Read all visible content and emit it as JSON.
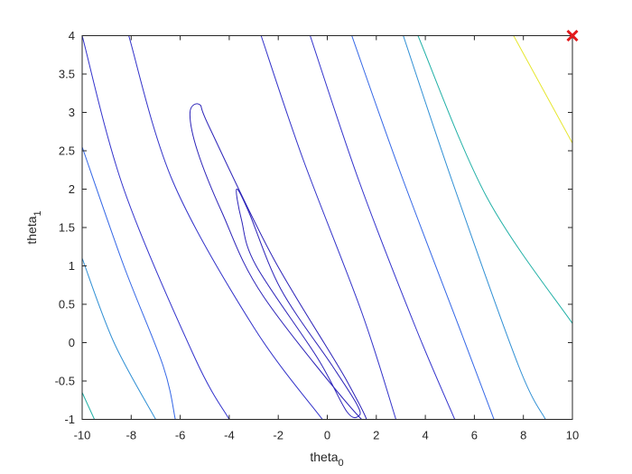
{
  "chart_data": {
    "type": "contour",
    "xlabel": {
      "base": "theta",
      "subscript": "0"
    },
    "ylabel": {
      "base": "theta",
      "subscript": "1"
    },
    "xlim": [
      -10,
      10
    ],
    "ylim": [
      -1,
      4
    ],
    "xticks": [
      "-10",
      "-8",
      "-6",
      "-4",
      "-2",
      "0",
      "2",
      "4",
      "6",
      "8",
      "10"
    ],
    "xtick_values": [
      -10,
      -8,
      -6,
      -4,
      -2,
      0,
      2,
      4,
      6,
      8,
      10
    ],
    "yticks": [
      "-1",
      "-0.5",
      "0",
      "0.5",
      "1",
      "1.5",
      "2",
      "2.5",
      "3",
      "3.5",
      "4"
    ],
    "ytick_values": [
      -1,
      -0.5,
      0,
      0.5,
      1,
      1.5,
      2,
      2.5,
      3,
      3.5,
      4
    ],
    "grid": false,
    "contour_levels": [
      {
        "color": "#2b22b8",
        "points": [
          [
            -2.9,
            1.0
          ],
          [
            -3.5,
            1.6
          ],
          [
            -3.7,
            2.0
          ],
          [
            -3.2,
            1.7
          ],
          [
            -1.9,
            0.7
          ],
          [
            0.2,
            -0.3
          ],
          [
            1.2,
            -0.8
          ],
          [
            1.3,
            -0.95
          ],
          [
            0.8,
            -0.9
          ],
          [
            -0.4,
            -0.2
          ]
        ],
        "closed": true
      },
      {
        "color": "#2b22b8",
        "points": [
          [
            -5.6,
            3.0
          ],
          [
            -5.2,
            3.1
          ],
          [
            -4.8,
            2.8
          ],
          [
            -2.2,
            1.1
          ],
          [
            0.8,
            -0.5
          ],
          [
            1.4,
            -1.0
          ],
          [
            -2.6,
            0.6
          ],
          [
            -4.3,
            1.7
          ],
          [
            -5.3,
            2.5
          ]
        ],
        "closed": true
      },
      {
        "color": "#3131c9",
        "points": [
          [
            -8.1,
            4.0
          ],
          [
            -6.3,
            2.1
          ],
          [
            -3.0,
            0.2
          ],
          [
            -0.2,
            -1.0
          ]
        ],
        "closed": false
      },
      {
        "color": "#3131c9",
        "points": [
          [
            -2.7,
            4.0
          ],
          [
            -1.0,
            2.4
          ],
          [
            1.4,
            0.4
          ],
          [
            2.8,
            -1.0
          ]
        ],
        "closed": false
      },
      {
        "color": "#3232cc",
        "points": [
          [
            -10.0,
            4.0
          ],
          [
            -8.3,
            2.0
          ],
          [
            -5.4,
            -0.2
          ],
          [
            -4.0,
            -1.0
          ]
        ],
        "closed": false
      },
      {
        "color": "#3232cc",
        "points": [
          [
            -0.7,
            4.0
          ],
          [
            1.3,
            2.1
          ],
          [
            3.6,
            0.2
          ],
          [
            5.2,
            -1.0
          ]
        ],
        "closed": false
      },
      {
        "color": "#3366e6",
        "points": [
          [
            -10.0,
            2.55
          ],
          [
            -8.3,
            1.0
          ],
          [
            -6.7,
            -0.3
          ],
          [
            -6.2,
            -1.0
          ]
        ],
        "closed": false
      },
      {
        "color": "#3366e6",
        "points": [
          [
            1.0,
            4.0
          ],
          [
            3.0,
            2.2
          ],
          [
            5.5,
            0.1
          ],
          [
            6.8,
            -1.0
          ]
        ],
        "closed": false
      },
      {
        "color": "#2f8fd4",
        "points": [
          [
            -10.0,
            1.1
          ],
          [
            -8.7,
            0.0
          ],
          [
            -7.0,
            -1.0
          ]
        ],
        "closed": false
      },
      {
        "color": "#2f8fd4",
        "points": [
          [
            3.1,
            4.0
          ],
          [
            5.1,
            2.1
          ],
          [
            7.8,
            -0.3
          ],
          [
            8.9,
            -1.0
          ]
        ],
        "closed": false
      },
      {
        "color": "#21b0a6",
        "points": [
          [
            -10.0,
            -0.65
          ],
          [
            -9.5,
            -1.0
          ]
        ],
        "closed": false
      },
      {
        "color": "#21b0a6",
        "points": [
          [
            3.7,
            4.0
          ],
          [
            6.5,
            1.9
          ],
          [
            10.0,
            0.25
          ]
        ],
        "closed": false
      },
      {
        "color": "#e6e62e",
        "points": [
          [
            7.6,
            4.0
          ],
          [
            10.0,
            2.6
          ]
        ],
        "closed": false
      }
    ],
    "marker": {
      "symbol": "x",
      "x": 10,
      "y": 4,
      "color": "#e31a1c"
    }
  }
}
